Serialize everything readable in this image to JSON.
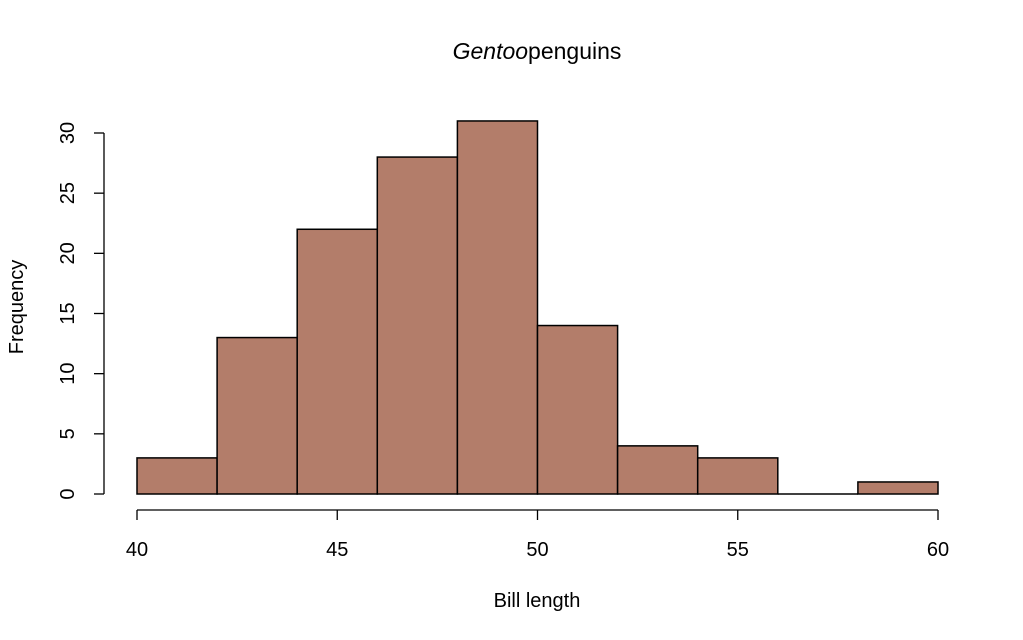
{
  "chart_data": {
    "type": "bar",
    "title_italic": "Gentoo",
    "title_rest": "penguins",
    "xlabel": "Bill length",
    "ylabel": "Frequency",
    "bin_edges": [
      40,
      42,
      44,
      46,
      48,
      50,
      52,
      54,
      56,
      58,
      60
    ],
    "values": [
      3,
      13,
      22,
      28,
      31,
      14,
      4,
      3,
      0,
      1
    ],
    "xlim": [
      40,
      60
    ],
    "ylim": [
      0,
      31
    ],
    "x_ticks": [
      40,
      45,
      50,
      55,
      60
    ],
    "y_ticks": [
      0,
      5,
      10,
      15,
      20,
      25,
      30
    ],
    "bar_color": "#b37d6a",
    "grid": false
  }
}
